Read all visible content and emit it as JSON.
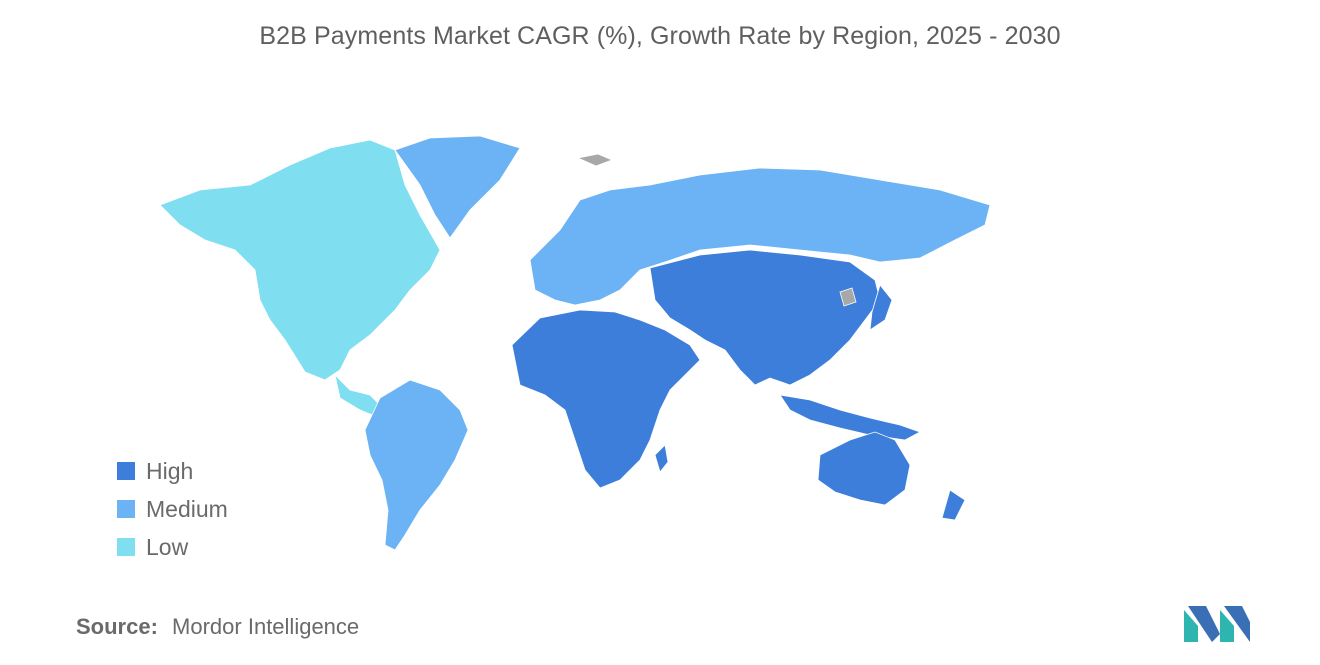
{
  "title": "B2B Payments Market CAGR (%), Growth Rate by Region, 2025 - 2030",
  "colors": {
    "high": "#3d7edb",
    "medium": "#6cb3f5",
    "low": "#7fdff0",
    "no_data": "#a8a8a8"
  },
  "legend": [
    {
      "label": "High",
      "color": "#3d7edb"
    },
    {
      "label": "Medium",
      "color": "#6cb3f5"
    },
    {
      "label": "Low",
      "color": "#7fdff0"
    }
  ],
  "regions": {
    "north_america": "low",
    "south_america": "medium",
    "europe": "medium",
    "russia": "medium",
    "greenland": "medium",
    "africa": "high",
    "middle_east": "high",
    "asia": "high",
    "australia_new_zealand": "high"
  },
  "source": {
    "key": "Source:",
    "value": "Mordor Intelligence"
  }
}
